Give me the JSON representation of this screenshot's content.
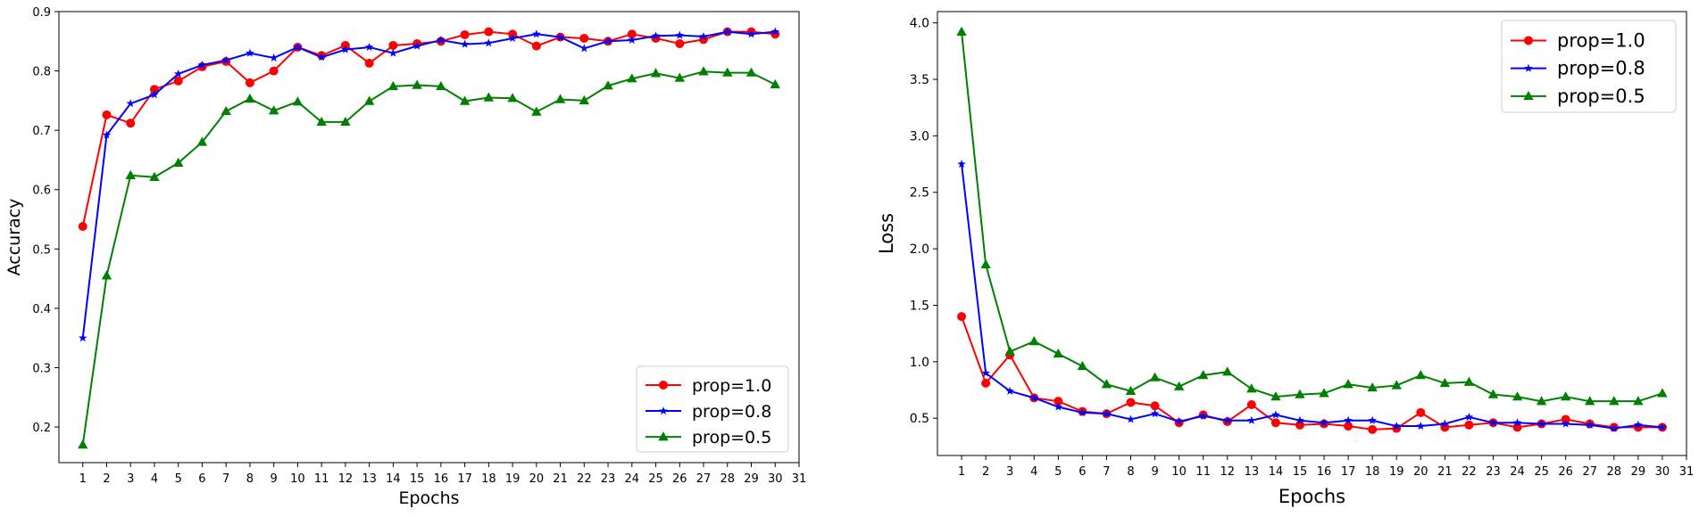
{
  "chart_data": [
    {
      "type": "line",
      "xlabel": "Epochs",
      "ylabel": "Accuracy",
      "xlim": [
        0,
        31
      ],
      "ylim": [
        0.14,
        0.9
      ],
      "x_ticks": [
        1,
        2,
        3,
        4,
        5,
        6,
        7,
        8,
        9,
        10,
        11,
        12,
        13,
        14,
        15,
        16,
        17,
        18,
        19,
        20,
        21,
        22,
        23,
        24,
        25,
        26,
        27,
        28,
        29,
        30,
        31
      ],
      "y_ticks": [
        0.2,
        0.3,
        0.4,
        0.5,
        0.6,
        0.7,
        0.8,
        0.9
      ],
      "y_tick_labels": [
        "0.2",
        "0.3",
        "0.4",
        "0.5",
        "0.6",
        "0.7",
        "0.8",
        "0.9"
      ],
      "legend": "lower-right",
      "grid": false,
      "x": [
        1,
        2,
        3,
        4,
        5,
        6,
        7,
        8,
        9,
        10,
        11,
        12,
        13,
        14,
        15,
        16,
        17,
        18,
        19,
        20,
        21,
        22,
        23,
        24,
        25,
        26,
        27,
        28,
        29,
        30
      ],
      "series": [
        {
          "name": "prop=1.0",
          "color": "#ff0000",
          "marker": "circle",
          "values": [
            0.538,
            0.726,
            0.712,
            0.769,
            0.783,
            0.807,
            0.816,
            0.78,
            0.8,
            0.84,
            0.826,
            0.843,
            0.813,
            0.843,
            0.846,
            0.85,
            0.861,
            0.866,
            0.862,
            0.842,
            0.857,
            0.855,
            0.85,
            0.862,
            0.855,
            0.846,
            0.853,
            0.866,
            0.866,
            0.862
          ]
        },
        {
          "name": "prop=0.8",
          "color": "#0000ff",
          "marker": "star",
          "values": [
            0.35,
            0.692,
            0.745,
            0.76,
            0.795,
            0.81,
            0.818,
            0.83,
            0.822,
            0.84,
            0.823,
            0.836,
            0.84,
            0.83,
            0.842,
            0.852,
            0.845,
            0.847,
            0.855,
            0.862,
            0.857,
            0.838,
            0.85,
            0.852,
            0.859,
            0.86,
            0.858,
            0.866,
            0.862,
            0.866
          ]
        },
        {
          "name": "prop=0.5",
          "color": "#008000",
          "marker": "triangle",
          "values": [
            0.17,
            0.455,
            0.624,
            0.621,
            0.645,
            0.68,
            0.732,
            0.753,
            0.733,
            0.748,
            0.714,
            0.714,
            0.749,
            0.774,
            0.776,
            0.774,
            0.749,
            0.755,
            0.754,
            0.731,
            0.752,
            0.75,
            0.775,
            0.787,
            0.796,
            0.788,
            0.799,
            0.797,
            0.797,
            0.777
          ]
        }
      ]
    },
    {
      "type": "line",
      "xlabel": "Epochs",
      "ylabel": "Loss",
      "xlim": [
        0,
        31
      ],
      "ylim": [
        0.17,
        4.1
      ],
      "x_ticks": [
        1,
        2,
        3,
        4,
        5,
        6,
        7,
        8,
        9,
        10,
        11,
        12,
        13,
        14,
        15,
        16,
        17,
        18,
        19,
        20,
        21,
        22,
        23,
        24,
        25,
        26,
        27,
        28,
        29,
        30,
        31
      ],
      "y_ticks": [
        0.5,
        1.0,
        1.5,
        2.0,
        2.5,
        3.0,
        3.5,
        4.0
      ],
      "y_tick_labels": [
        "0.5",
        "1.0",
        "1.5",
        "2.0",
        "2.5",
        "3.0",
        "3.5",
        "4.0"
      ],
      "legend": "upper-right",
      "grid": false,
      "x": [
        1,
        2,
        3,
        4,
        5,
        6,
        7,
        8,
        9,
        10,
        11,
        12,
        13,
        14,
        15,
        16,
        17,
        18,
        19,
        20,
        21,
        22,
        23,
        24,
        25,
        26,
        27,
        28,
        29,
        30
      ],
      "series": [
        {
          "name": "prop=1.0",
          "color": "#ff0000",
          "marker": "circle",
          "values": [
            1.4,
            0.81,
            1.06,
            0.68,
            0.65,
            0.56,
            0.54,
            0.64,
            0.61,
            0.46,
            0.53,
            0.47,
            0.62,
            0.46,
            0.44,
            0.45,
            0.43,
            0.4,
            0.41,
            0.55,
            0.42,
            0.44,
            0.46,
            0.42,
            0.45,
            0.49,
            0.45,
            0.42,
            0.42,
            0.42
          ]
        },
        {
          "name": "prop=0.8",
          "color": "#0000ff",
          "marker": "star",
          "values": [
            2.75,
            0.9,
            0.74,
            0.68,
            0.6,
            0.55,
            0.54,
            0.49,
            0.54,
            0.47,
            0.52,
            0.48,
            0.48,
            0.53,
            0.48,
            0.46,
            0.48,
            0.48,
            0.43,
            0.43,
            0.45,
            0.51,
            0.46,
            0.46,
            0.45,
            0.45,
            0.44,
            0.41,
            0.44,
            0.42
          ]
        },
        {
          "name": "prop=0.5",
          "color": "#008000",
          "marker": "triangle",
          "values": [
            3.92,
            1.86,
            1.09,
            1.18,
            1.07,
            0.96,
            0.8,
            0.74,
            0.86,
            0.78,
            0.88,
            0.91,
            0.76,
            0.69,
            0.71,
            0.72,
            0.8,
            0.77,
            0.79,
            0.88,
            0.81,
            0.82,
            0.71,
            0.69,
            0.65,
            0.69,
            0.65,
            0.65,
            0.65,
            0.72
          ]
        }
      ]
    }
  ]
}
